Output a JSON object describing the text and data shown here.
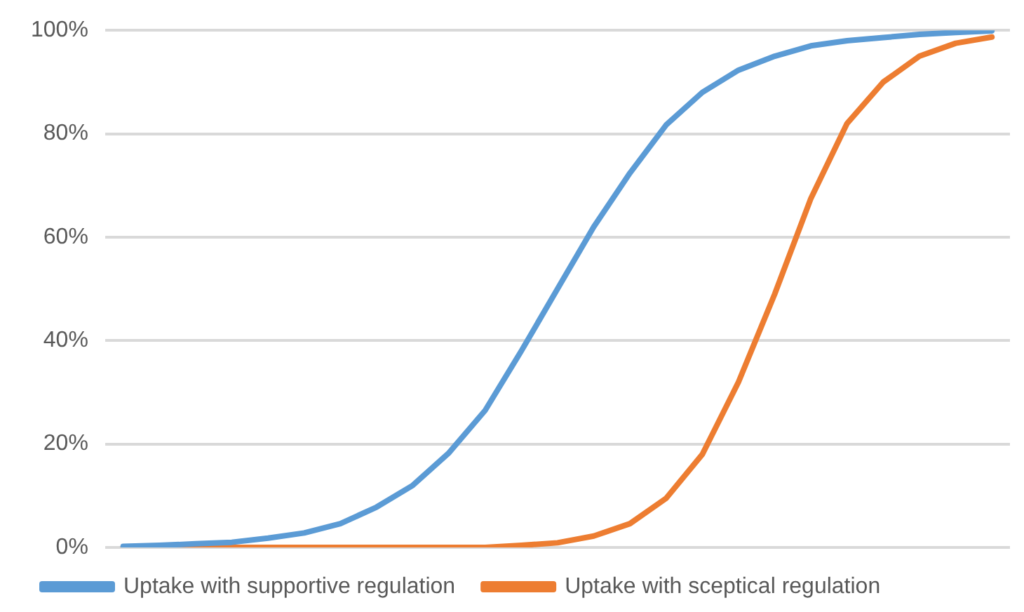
{
  "chart_data": {
    "type": "line",
    "categories": [
      null,
      null,
      null,
      null,
      null,
      null,
      null,
      null,
      null,
      null,
      null,
      null,
      null,
      null,
      null,
      null,
      null,
      null,
      null,
      null,
      null,
      null,
      null,
      null,
      null
    ],
    "series": [
      {
        "name": "Uptake with supportive regulation",
        "color": "#5b9bd5",
        "values": [
          0.2,
          0.4,
          0.7,
          1.0,
          1.8,
          2.8,
          4.6,
          7.8,
          12,
          18.3,
          26.5,
          38,
          50,
          62,
          72.4,
          81.7,
          88,
          92.3,
          95,
          97,
          98,
          98.6,
          99.2,
          99.6,
          99.9
        ]
      },
      {
        "name": "Uptake with sceptical regulation",
        "color": "#ed7d31",
        "values": [
          0,
          0,
          0,
          0,
          0,
          0,
          0,
          0,
          0,
          0,
          0,
          0.4,
          0.9,
          2.2,
          4.6,
          9.5,
          18,
          32,
          49,
          67.5,
          82,
          90,
          95,
          97.5,
          98.7
        ]
      }
    ],
    "ylim": [
      0,
      100
    ],
    "yticks": [
      {
        "value": 0,
        "label": "0%"
      },
      {
        "value": 20,
        "label": "20%"
      },
      {
        "value": 40,
        "label": "40%"
      },
      {
        "value": 60,
        "label": "60%"
      },
      {
        "value": 80,
        "label": "80%"
      },
      {
        "value": 100,
        "label": "100%"
      }
    ],
    "grid": "y",
    "legend": "bottom",
    "marker": "none",
    "line_style": "solid"
  }
}
